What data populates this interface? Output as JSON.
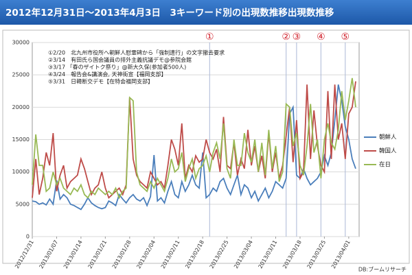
{
  "chart_data": {
    "type": "line",
    "title": "2012年12月31日～2013年4月3日　3キーワード別の出現数推移出現数推移",
    "annotations": [
      "①2/20　北九州市役所へ朝鮮人慰霊碑から「強制連行」の文字撤去要求",
      "②3/14　有田氏ら国会議員の排外主義抗議デモ@参院会館",
      "③3/17 「春のザイトク祭り」@新大久保(参加者500人)",
      "④3/24　報告会&講演会, 天神街宣【福岡支部】",
      "⑤3/31　日韓断交デモ【在特会福岡支部】"
    ],
    "markers": [
      {
        "label": "①",
        "index": 51
      },
      {
        "label": "②",
        "index": 73
      },
      {
        "label": "③",
        "index": 76
      },
      {
        "label": "④",
        "index": 83
      },
      {
        "label": "⑤",
        "index": 90
      }
    ],
    "source": "DB:ブームリサーチ",
    "categories": [
      "2012/12/31",
      null,
      null,
      null,
      null,
      null,
      null,
      "2013/01/07",
      null,
      null,
      null,
      null,
      null,
      null,
      "2013/01/14",
      null,
      null,
      null,
      null,
      null,
      null,
      "2013/01/21",
      null,
      null,
      null,
      null,
      null,
      null,
      "2013/01/28",
      null,
      null,
      null,
      null,
      null,
      null,
      "2013/02/04",
      null,
      null,
      null,
      null,
      null,
      null,
      "2013/02/11",
      null,
      null,
      null,
      null,
      null,
      null,
      "2013/02/18",
      null,
      null,
      null,
      null,
      null,
      null,
      "2013/02/25",
      null,
      null,
      null,
      null,
      null,
      null,
      "2013/03/04",
      null,
      null,
      null,
      null,
      null,
      null,
      "2013/03/11",
      null,
      null,
      null,
      null,
      null,
      null,
      "2013/03/18",
      null,
      null,
      null,
      null,
      null,
      null,
      "2013/03/25",
      null,
      null,
      null,
      null,
      null,
      null,
      "2013/04/01",
      null,
      null
    ],
    "ylim": [
      0,
      30000
    ],
    "yticks": [
      0,
      5000,
      10000,
      15000,
      20000,
      25000,
      30000
    ],
    "grid": true,
    "legend": "right",
    "series": [
      {
        "name": "朝鮮人",
        "color": "#4a7ebb",
        "values": [
          5500,
          5400,
          5000,
          5200,
          4900,
          5800,
          5000,
          8700,
          5800,
          6500,
          6000,
          5000,
          4800,
          4500,
          4200,
          5000,
          6000,
          5200,
          4800,
          4500,
          4300,
          4500,
          5500,
          5200,
          4800,
          6500,
          5800,
          5200,
          6000,
          6500,
          5800,
          5500,
          6000,
          4800,
          6200,
          12600,
          5500,
          6000,
          5200,
          7000,
          8500,
          6500,
          6000,
          8500,
          7000,
          8000,
          9500,
          8000,
          7500,
          13000,
          6000,
          6500,
          7500,
          7000,
          8500,
          9000,
          7500,
          6500,
          8000,
          9500,
          6500,
          8000,
          7500,
          6000,
          7000,
          5500,
          6500,
          7500,
          6000,
          7000,
          8500,
          8000,
          7500,
          9000,
          19000,
          20000,
          9500,
          9000,
          10500,
          9000,
          8000,
          8500,
          9000,
          10000,
          12500,
          11000,
          13000,
          18000,
          23500,
          21000,
          17000,
          15000,
          12000,
          10500
        ]
      },
      {
        "name": "韓国人",
        "color": "#be4b48",
        "values": [
          6000,
          12000,
          6500,
          9000,
          13000,
          11000,
          16000,
          7000,
          9500,
          11000,
          7500,
          8500,
          9000,
          9500,
          12000,
          10500,
          8500,
          6500,
          7500,
          8000,
          10000,
          7500,
          6000,
          6500,
          7000,
          7500,
          6500,
          8000,
          21500,
          12000,
          9500,
          8500,
          8000,
          7500,
          10000,
          9000,
          8000,
          8500,
          7500,
          11000,
          15000,
          13500,
          11000,
          17500,
          9000,
          11000,
          10000,
          12500,
          11500,
          12000,
          15000,
          13000,
          12000,
          13500,
          10000,
          18500,
          11000,
          10500,
          14500,
          9500,
          12000,
          10500,
          16500,
          11000,
          14000,
          10000,
          12500,
          9000,
          16000,
          10000,
          13000,
          9000,
          11000,
          15500,
          20000,
          11500,
          18000,
          9000,
          10000,
          23500,
          12000,
          19500,
          14000,
          11000,
          10000,
          22500,
          12000,
          23500,
          15000,
          17500,
          12000,
          19000,
          20000,
          24000
        ]
      },
      {
        "name": "在日",
        "color": "#98b954",
        "values": [
          8000,
          15800,
          11000,
          11000,
          7000,
          7500,
          10000,
          8000,
          9000,
          7500,
          7000,
          6500,
          7500,
          7000,
          8000,
          6500,
          6000,
          7000,
          6500,
          7500,
          7000,
          6500,
          7000,
          6500,
          7500,
          6000,
          7000,
          7500,
          21500,
          21000,
          10000,
          8000,
          7500,
          7000,
          8500,
          7500,
          9000,
          8000,
          7000,
          9000,
          12000,
          10000,
          10500,
          13000,
          8500,
          10500,
          12000,
          9000,
          10500,
          11000,
          12500,
          10000,
          13000,
          14500,
          12000,
          17500,
          10500,
          9000,
          15000,
          11000,
          11000,
          16000,
          13000,
          11500,
          15000,
          10000,
          14500,
          9500,
          16500,
          10500,
          14000,
          8500,
          10000,
          20500,
          20000,
          14000,
          16000,
          11000,
          9500,
          14000,
          20500,
          13000,
          15000,
          9000,
          15000,
          17500,
          14500,
          13500,
          16500,
          22500,
          18000,
          21000,
          24500,
          20000
        ]
      }
    ]
  }
}
